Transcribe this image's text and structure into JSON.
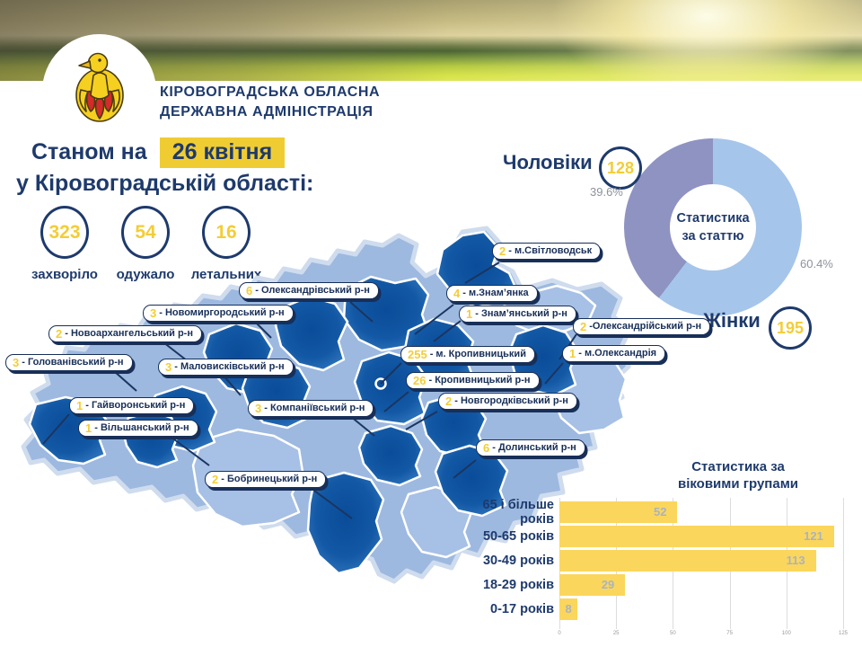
{
  "banner": {
    "org_name_line1": "КІРОВОГРАДСЬКА ОБЛАСНА",
    "org_name_line2": "ДЕРЖАВНА АДМІНІСТРАЦІЯ",
    "logo": "eagle-emblem"
  },
  "report_header": {
    "prefix": "Станом на",
    "date_highlight": "26 квітня",
    "region_line": "у Кіровоградській області:"
  },
  "summary_stats": [
    {
      "value": "323",
      "label": "захворіло"
    },
    {
      "value": "54",
      "label": "одужало"
    },
    {
      "value": "16",
      "label": "летальних"
    }
  ],
  "map_labels": [
    {
      "value": "2",
      "text": "- м.Світловодськ"
    },
    {
      "value": "6",
      "text": "- Олександрівський р-н"
    },
    {
      "value": "4",
      "text": "- м.Знам’янка"
    },
    {
      "value": "1",
      "text": "- Знам’янський р-н"
    },
    {
      "value": "3",
      "text": "- Новомиргородський р-н"
    },
    {
      "value": "2",
      "text": "- Новоархангельський р-н"
    },
    {
      "value": "2",
      "text": "-Олександрійський р-н"
    },
    {
      "value": "3",
      "text": "- Голованівський р-н"
    },
    {
      "value": "3",
      "text": "- Маловисківський р-н"
    },
    {
      "value": "255",
      "text": "- м. Кропивницький"
    },
    {
      "value": "1",
      "text": "- м.Олександрія"
    },
    {
      "value": "26",
      "text": "- Кропивницький р-н"
    },
    {
      "value": "1",
      "text": "- Гайворонський р-н"
    },
    {
      "value": "3",
      "text": "- Компаніївський р-н"
    },
    {
      "value": "2",
      "text": "- Новгородківський р-н"
    },
    {
      "value": "1",
      "text": "- Вільшанський р-н"
    },
    {
      "value": "6",
      "text": "- Долинський р-н"
    },
    {
      "value": "2",
      "text": "- Бобринецький р-н"
    }
  ],
  "chart_data": [
    {
      "type": "pie",
      "subtype": "donut",
      "title": "Статистика за статтю",
      "center_label_line1": "Статистика",
      "center_label_line2": "за статтю",
      "slices": [
        {
          "label": "Чоловіки",
          "value": "128",
          "percent": 39.6,
          "percent_display": "39.6%",
          "color": "#8e93c2"
        },
        {
          "label": "Жінки",
          "value": "195",
          "percent": 60.4,
          "percent_display": "60.4%",
          "color": "#a6c5ea"
        }
      ],
      "legend_position": "outside"
    },
    {
      "type": "bar",
      "orientation": "horizontal",
      "title_line1": "Статистика за",
      "title_line2": "віковими групами",
      "categories": [
        "65 і більше років",
        "50-65 років",
        "30-49 років",
        "18-29 років",
        "0-17 років"
      ],
      "values": [
        52,
        121,
        113,
        29,
        8
      ],
      "xlim": [
        0,
        125
      ],
      "xticks": [
        "0",
        "25",
        "50",
        "75",
        "100",
        "125"
      ],
      "grid": true,
      "bar_color": "#fbd65c",
      "value_label_color": "#a9b3c2"
    }
  ],
  "colors": {
    "navy_text": "#1e3a6c",
    "accent_yellow": "#f3cd37",
    "date_highlight_bg": "#f0cc33",
    "map_dark_blue": "#0a4c99",
    "map_light_blue": "#a7c0e5",
    "donut_purple": "#8e93c2",
    "donut_blue": "#a6c5ea"
  }
}
